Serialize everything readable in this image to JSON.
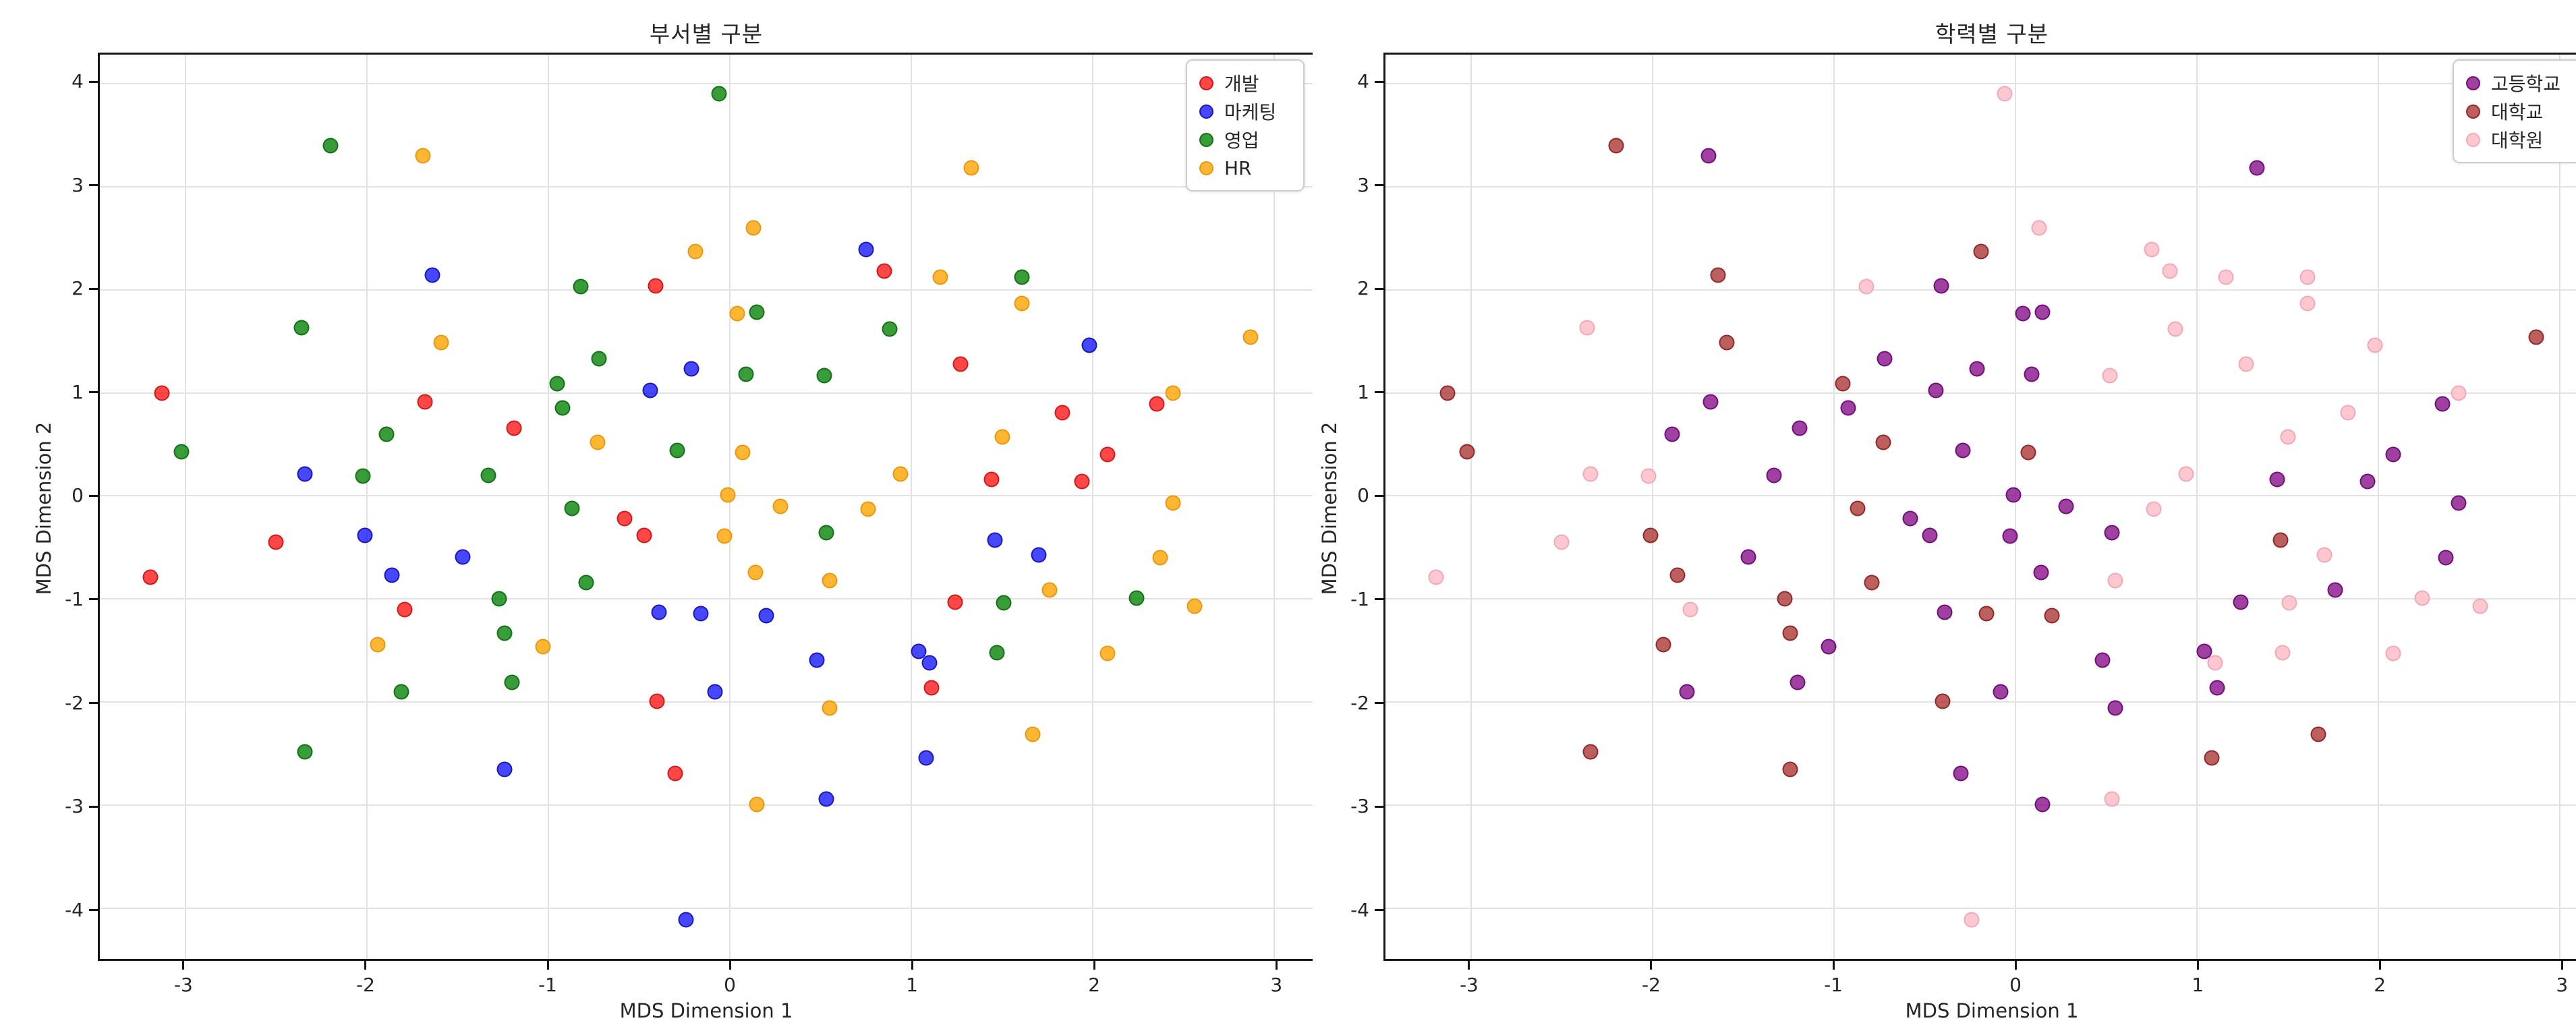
{
  "page": {
    "background": "#ffffff"
  },
  "chart_data": {
    "type": "scatter",
    "description": "Two MDS scatter plots of the same 100 employees, left colored by department, right colored by education level",
    "panels": [
      {
        "title": "부서별 구분",
        "xlabel": "MDS Dimension 1",
        "ylabel": "MDS Dimension 2",
        "color_key": "dept",
        "xlim": [
          -3.47,
          3.21
        ],
        "ylim": [
          -4.49,
          4.28
        ],
        "xticks": [
          {
            "v": -3,
            "label": "-3"
          },
          {
            "v": -2,
            "label": "-2"
          },
          {
            "v": -1,
            "label": "-1"
          },
          {
            "v": 0,
            "label": "0"
          },
          {
            "v": 1,
            "label": "1"
          },
          {
            "v": 2,
            "label": "2"
          },
          {
            "v": 3,
            "label": "3"
          }
        ],
        "yticks": [
          {
            "v": -4,
            "label": "-4"
          },
          {
            "v": -3,
            "label": "-3"
          },
          {
            "v": -2,
            "label": "-2"
          },
          {
            "v": -1,
            "label": "-1"
          },
          {
            "v": 0,
            "label": "0"
          },
          {
            "v": 1,
            "label": "1"
          },
          {
            "v": 2,
            "label": "2"
          },
          {
            "v": 3,
            "label": "3"
          },
          {
            "v": 4,
            "label": "4"
          }
        ],
        "grid": true,
        "legend_position": "upper right",
        "legend": [
          {
            "label": "개발",
            "fill": "#ff0000",
            "edge": "#cc1414",
            "alpha": 0.72
          },
          {
            "label": "마케팅",
            "fill": "#0000ff",
            "edge": "#1414b4",
            "alpha": 0.72
          },
          {
            "label": "영업",
            "fill": "#008000",
            "edge": "#0f6e12",
            "alpha": 0.78
          },
          {
            "label": "HR",
            "fill": "#ffa500",
            "edge": "#e6940a",
            "alpha": 0.8
          }
        ]
      },
      {
        "title": "학력별 구분",
        "xlabel": "MDS Dimension 1",
        "ylabel": "MDS Dimension 2",
        "color_key": "edu",
        "xlim": [
          -3.47,
          3.21
        ],
        "ylim": [
          -4.49,
          4.28
        ],
        "xticks": [
          {
            "v": -3,
            "label": "-3"
          },
          {
            "v": -2,
            "label": "-2"
          },
          {
            "v": -1,
            "label": "-1"
          },
          {
            "v": 0,
            "label": "0"
          },
          {
            "v": 1,
            "label": "1"
          },
          {
            "v": 2,
            "label": "2"
          },
          {
            "v": 3,
            "label": "3"
          }
        ],
        "yticks": [
          {
            "v": -4,
            "label": "-4"
          },
          {
            "v": -3,
            "label": "-3"
          },
          {
            "v": -2,
            "label": "-2"
          },
          {
            "v": -1,
            "label": "-1"
          },
          {
            "v": 0,
            "label": "0"
          },
          {
            "v": 1,
            "label": "1"
          },
          {
            "v": 2,
            "label": "2"
          },
          {
            "v": 3,
            "label": "3"
          },
          {
            "v": 4,
            "label": "4"
          }
        ],
        "grid": true,
        "legend_position": "upper right",
        "legend": [
          {
            "label": "고등학교",
            "fill": "#800080",
            "edge": "#6a0a78",
            "alpha": 0.75
          },
          {
            "label": "대학교",
            "fill": "#a52a2a",
            "edge": "#8f2222",
            "alpha": 0.75
          },
          {
            "label": "대학원",
            "fill": "#ffc0cb",
            "edge": "#f0a4b4",
            "alpha": 0.88
          }
        ]
      }
    ],
    "points": [
      {
        "x": -2.2,
        "y": 3.4,
        "dept": "영업",
        "edu": "대학교"
      },
      {
        "x": -1.69,
        "y": 3.3,
        "dept": "HR",
        "edu": "고등학교"
      },
      {
        "x": -1.64,
        "y": 2.14,
        "dept": "마케팅",
        "edu": "대학교"
      },
      {
        "x": -2.36,
        "y": 1.63,
        "dept": "영업",
        "edu": "대학원"
      },
      {
        "x": -1.59,
        "y": 1.49,
        "dept": "HR",
        "edu": "대학교"
      },
      {
        "x": -3.13,
        "y": 1.0,
        "dept": "개발",
        "edu": "대학교"
      },
      {
        "x": -1.68,
        "y": 0.91,
        "dept": "개발",
        "edu": "고등학교"
      },
      {
        "x": -1.89,
        "y": 0.6,
        "dept": "영업",
        "edu": "고등학교"
      },
      {
        "x": -3.02,
        "y": 0.43,
        "dept": "영업",
        "edu": "대학교"
      },
      {
        "x": -2.34,
        "y": 0.21,
        "dept": "마케팅",
        "edu": "대학원"
      },
      {
        "x": -2.02,
        "y": 0.19,
        "dept": "영업",
        "edu": "대학원"
      },
      {
        "x": -1.33,
        "y": 0.2,
        "dept": "영업",
        "edu": "고등학교"
      },
      {
        "x": -0.06,
        "y": 3.9,
        "dept": "영업",
        "edu": "대학원"
      },
      {
        "x": 0.13,
        "y": 2.6,
        "dept": "HR",
        "edu": "대학원"
      },
      {
        "x": -0.19,
        "y": 2.37,
        "dept": "HR",
        "edu": "대학교"
      },
      {
        "x": 0.75,
        "y": 2.39,
        "dept": "마케팅",
        "edu": "대학원"
      },
      {
        "x": 0.85,
        "y": 2.18,
        "dept": "개발",
        "edu": "대학원"
      },
      {
        "x": -0.41,
        "y": 2.04,
        "dept": "개발",
        "edu": "고등학교"
      },
      {
        "x": -0.82,
        "y": 2.03,
        "dept": "영업",
        "edu": "대학원"
      },
      {
        "x": 0.04,
        "y": 1.77,
        "dept": "HR",
        "edu": "고등학교"
      },
      {
        "x": 0.15,
        "y": 1.78,
        "dept": "영업",
        "edu": "고등학교"
      },
      {
        "x": 0.88,
        "y": 1.62,
        "dept": "영업",
        "edu": "대학원"
      },
      {
        "x": -0.72,
        "y": 1.33,
        "dept": "영업",
        "edu": "고등학교"
      },
      {
        "x": -0.21,
        "y": 1.23,
        "dept": "마케팅",
        "edu": "고등학교"
      },
      {
        "x": 0.09,
        "y": 1.18,
        "dept": "영업",
        "edu": "고등학교"
      },
      {
        "x": 0.52,
        "y": 1.17,
        "dept": "영업",
        "edu": "대학원"
      },
      {
        "x": -0.95,
        "y": 1.09,
        "dept": "영업",
        "edu": "대학교"
      },
      {
        "x": -0.44,
        "y": 1.02,
        "dept": "마케팅",
        "edu": "고등학교"
      },
      {
        "x": -0.92,
        "y": 0.85,
        "dept": "영업",
        "edu": "고등학교"
      },
      {
        "x": -1.19,
        "y": 0.66,
        "dept": "개발",
        "edu": "고등학교"
      },
      {
        "x": -0.73,
        "y": 0.52,
        "dept": "HR",
        "edu": "대학교"
      },
      {
        "x": -0.29,
        "y": 0.44,
        "dept": "영업",
        "edu": "고등학교"
      },
      {
        "x": 0.07,
        "y": 0.42,
        "dept": "HR",
        "edu": "대학교"
      },
      {
        "x": 0.94,
        "y": 0.21,
        "dept": "HR",
        "edu": "대학원"
      },
      {
        "x": -0.01,
        "y": 0.01,
        "dept": "HR",
        "edu": "고등학교"
      },
      {
        "x": -0.87,
        "y": -0.12,
        "dept": "영업",
        "edu": "대학교"
      },
      {
        "x": 0.28,
        "y": -0.1,
        "dept": "HR",
        "edu": "고등학교"
      },
      {
        "x": 0.76,
        "y": -0.13,
        "dept": "HR",
        "edu": "대학원"
      },
      {
        "x": 1.33,
        "y": 3.18,
        "dept": "HR",
        "edu": "고등학교"
      },
      {
        "x": 1.16,
        "y": 2.12,
        "dept": "HR",
        "edu": "대학원"
      },
      {
        "x": 1.61,
        "y": 2.12,
        "dept": "영업",
        "edu": "대학원"
      },
      {
        "x": 1.61,
        "y": 1.87,
        "dept": "HR",
        "edu": "대학원"
      },
      {
        "x": 1.98,
        "y": 1.46,
        "dept": "마케팅",
        "edu": "대학원"
      },
      {
        "x": 2.87,
        "y": 1.54,
        "dept": "HR",
        "edu": "대학교"
      },
      {
        "x": 1.27,
        "y": 1.28,
        "dept": "개발",
        "edu": "대학원"
      },
      {
        "x": 2.44,
        "y": 1.0,
        "dept": "HR",
        "edu": "대학원"
      },
      {
        "x": 2.35,
        "y": 0.89,
        "dept": "개발",
        "edu": "고등학교"
      },
      {
        "x": 1.83,
        "y": 0.81,
        "dept": "개발",
        "edu": "대학원"
      },
      {
        "x": 1.5,
        "y": 0.57,
        "dept": "HR",
        "edu": "대학원"
      },
      {
        "x": 2.08,
        "y": 0.4,
        "dept": "개발",
        "edu": "고등학교"
      },
      {
        "x": 1.44,
        "y": 0.16,
        "dept": "개발",
        "edu": "고등학교"
      },
      {
        "x": 1.94,
        "y": 0.14,
        "dept": "개발",
        "edu": "고등학교"
      },
      {
        "x": 2.44,
        "y": -0.07,
        "dept": "HR",
        "edu": "고등학교"
      },
      {
        "x": -2.5,
        "y": -0.45,
        "dept": "개발",
        "edu": "대학원"
      },
      {
        "x": -2.01,
        "y": -0.38,
        "dept": "마케팅",
        "edu": "대학교"
      },
      {
        "x": -1.47,
        "y": -0.59,
        "dept": "마케팅",
        "edu": "고등학교"
      },
      {
        "x": -3.19,
        "y": -0.79,
        "dept": "개발",
        "edu": "대학원"
      },
      {
        "x": -1.86,
        "y": -0.77,
        "dept": "마케팅",
        "edu": "대학교"
      },
      {
        "x": -1.79,
        "y": -1.1,
        "dept": "개발",
        "edu": "대학원"
      },
      {
        "x": -1.94,
        "y": -1.44,
        "dept": "HR",
        "edu": "대학교"
      },
      {
        "x": -1.81,
        "y": -1.9,
        "dept": "영업",
        "edu": "고등학교"
      },
      {
        "x": -2.34,
        "y": -2.48,
        "dept": "영업",
        "edu": "대학교"
      },
      {
        "x": -0.58,
        "y": -0.22,
        "dept": "개발",
        "edu": "고등학교"
      },
      {
        "x": -0.47,
        "y": -0.38,
        "dept": "개발",
        "edu": "고등학교"
      },
      {
        "x": -0.03,
        "y": -0.39,
        "dept": "HR",
        "edu": "고등학교"
      },
      {
        "x": 0.53,
        "y": -0.36,
        "dept": "영업",
        "edu": "고등학교"
      },
      {
        "x": -0.79,
        "y": -0.84,
        "dept": "영업",
        "edu": "대학교"
      },
      {
        "x": -1.27,
        "y": -1.0,
        "dept": "영업",
        "edu": "대학교"
      },
      {
        "x": -1.24,
        "y": -1.33,
        "dept": "영업",
        "edu": "대학교"
      },
      {
        "x": -1.03,
        "y": -1.46,
        "dept": "HR",
        "edu": "고등학교"
      },
      {
        "x": -0.39,
        "y": -1.13,
        "dept": "마케팅",
        "edu": "고등학교"
      },
      {
        "x": -0.16,
        "y": -1.14,
        "dept": "마케팅",
        "edu": "대학교"
      },
      {
        "x": 0.2,
        "y": -1.16,
        "dept": "마케팅",
        "edu": "대학교"
      },
      {
        "x": -1.2,
        "y": -1.81,
        "dept": "영업",
        "edu": "고등학교"
      },
      {
        "x": 0.48,
        "y": -1.59,
        "dept": "마케팅",
        "edu": "고등학교"
      },
      {
        "x": -0.4,
        "y": -1.99,
        "dept": "개발",
        "edu": "대학교"
      },
      {
        "x": -0.08,
        "y": -1.9,
        "dept": "마케팅",
        "edu": "고등학교"
      },
      {
        "x": 0.55,
        "y": -2.06,
        "dept": "HR",
        "edu": "고등학교"
      },
      {
        "x": -1.24,
        "y": -2.65,
        "dept": "마케팅",
        "edu": "대학교"
      },
      {
        "x": -0.3,
        "y": -2.69,
        "dept": "개발",
        "edu": "고등학교"
      },
      {
        "x": 0.15,
        "y": -2.99,
        "dept": "HR",
        "edu": "고등학교"
      },
      {
        "x": 0.53,
        "y": -2.94,
        "dept": "마케팅",
        "edu": "대학원"
      },
      {
        "x": -0.24,
        "y": -4.11,
        "dept": "마케팅",
        "edu": "대학원"
      },
      {
        "x": 1.46,
        "y": -0.43,
        "dept": "마케팅",
        "edu": "대학교"
      },
      {
        "x": 1.7,
        "y": -0.57,
        "dept": "마케팅",
        "edu": "대학원"
      },
      {
        "x": 1.76,
        "y": -0.91,
        "dept": "HR",
        "edu": "고등학교"
      },
      {
        "x": 1.24,
        "y": -1.03,
        "dept": "개발",
        "edu": "고등학교"
      },
      {
        "x": 1.51,
        "y": -1.04,
        "dept": "영업",
        "edu": "대학원"
      },
      {
        "x": 2.24,
        "y": -0.99,
        "dept": "영업",
        "edu": "대학원"
      },
      {
        "x": 2.37,
        "y": -0.6,
        "dept": "HR",
        "edu": "고등학교"
      },
      {
        "x": 2.56,
        "y": -1.07,
        "dept": "HR",
        "edu": "대학원"
      },
      {
        "x": 1.04,
        "y": -1.51,
        "dept": "마케팅",
        "edu": "고등학교"
      },
      {
        "x": 1.1,
        "y": -1.62,
        "dept": "마케팅",
        "edu": "대학원"
      },
      {
        "x": 1.47,
        "y": -1.52,
        "dept": "영업",
        "edu": "대학원"
      },
      {
        "x": 2.08,
        "y": -1.53,
        "dept": "HR",
        "edu": "대학원"
      },
      {
        "x": 1.11,
        "y": -1.86,
        "dept": "개발",
        "edu": "고등학교"
      },
      {
        "x": 1.67,
        "y": -2.31,
        "dept": "HR",
        "edu": "대학교"
      },
      {
        "x": 1.08,
        "y": -2.54,
        "dept": "마케팅",
        "edu": "대학교"
      },
      {
        "x": 0.55,
        "y": -0.82,
        "dept": "HR",
        "edu": "대학원"
      },
      {
        "x": 0.14,
        "y": -0.74,
        "dept": "HR",
        "edu": "고등학교"
      }
    ]
  }
}
